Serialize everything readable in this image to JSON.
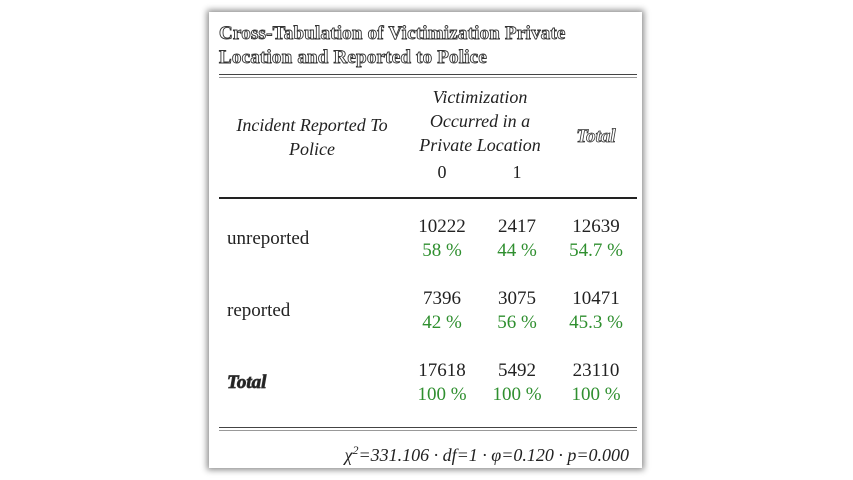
{
  "title": "Cross-Tabulation of Victimization Private Location and Reported to Police",
  "header": {
    "row_var": "Incident Reported To Police",
    "col_var": "Victimization Occurred in a Private Location",
    "total": "Total",
    "col_levels": [
      "0",
      "1"
    ]
  },
  "rows": [
    {
      "label": "unreported",
      "counts": [
        "10222",
        "2417",
        "12639"
      ],
      "pcts": [
        "58 %",
        "44 %",
        "54.7 %"
      ]
    },
    {
      "label": "reported",
      "counts": [
        "7396",
        "3075",
        "10471"
      ],
      "pcts": [
        "42 %",
        "56 %",
        "45.3 %"
      ]
    },
    {
      "label": "Total",
      "counts": [
        "17618",
        "5492",
        "23110"
      ],
      "pcts": [
        "100 %",
        "100 %",
        "100 %"
      ]
    }
  ],
  "stats": {
    "chi_symbol": "χ",
    "chi_sup": "2",
    "rest": "=331.106 · df=1 · φ=0.120 · p=0.000"
  },
  "colors": {
    "count": "#222222",
    "percent": "#2f8f2f"
  }
}
